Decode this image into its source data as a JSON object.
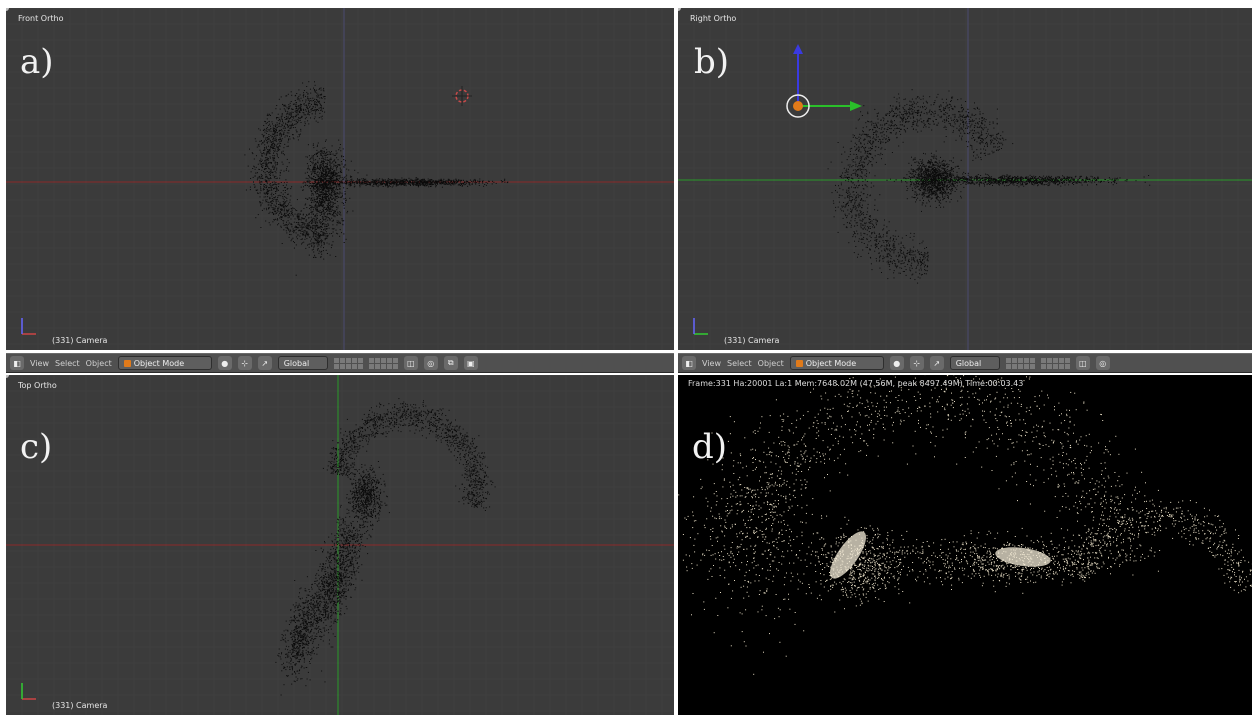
{
  "viewports": {
    "a": {
      "title": "Front Ortho",
      "letter": "a)",
      "caption": "(331) Camera"
    },
    "b": {
      "title": "Right Ortho",
      "letter": "b)",
      "caption": "(331) Camera"
    },
    "c": {
      "title": "Top Ortho",
      "letter": "c)",
      "caption": "(331) Camera"
    },
    "d": {
      "letter": "d)",
      "stats": "Frame:331 Ha:20001 La:1 Mem:7648.02M (47.56M, peak 8497.49M) Time:00:03.43"
    }
  },
  "toolbar": {
    "view_label": "View",
    "select_label": "Select",
    "object_label": "Object",
    "mode_value": "Object Mode",
    "orientation_value": "Global"
  },
  "colors": {
    "viewport_bg": "#3b3b3b",
    "render_bg": "#000000",
    "toolbar_bg": "#505050",
    "axis_x": "#8b2a2a",
    "axis_y": "#2a9a2a",
    "particle_dark": "#0a0a0a",
    "particle_render": "#e6dcc4",
    "mode_icon": "#e07a1a"
  }
}
